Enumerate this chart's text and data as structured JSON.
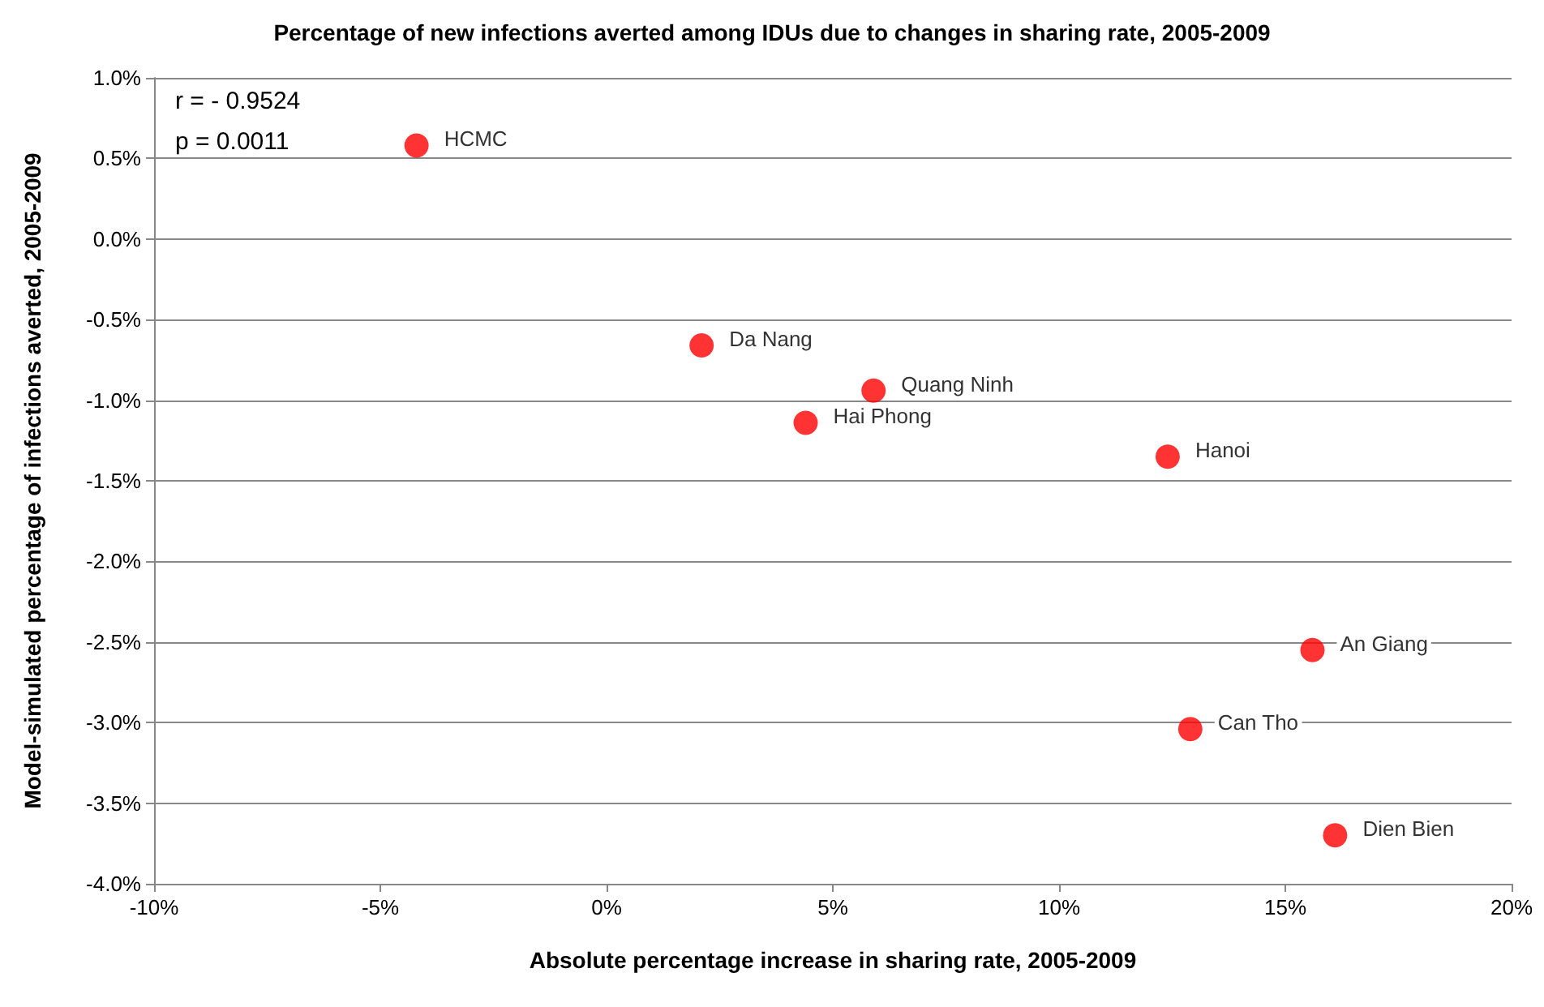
{
  "chart_data": {
    "type": "scatter",
    "title": "Percentage of new infections averted among IDUs due to changes in sharing rate, 2005-2009",
    "xlabel": "Absolute percentage increase in sharing rate, 2005-2009",
    "ylabel": "Model-simulated percentage of infections averted, 2005-2009",
    "x": [
      -4.2,
      2.1,
      5.9,
      4.4,
      12.4,
      15.6,
      12.9,
      16.1
    ],
    "series": [
      {
        "color": "#ff0000",
        "values": [
          0.58,
          -0.66,
          -0.94,
          -1.14,
          -1.35,
          -2.55,
          -3.04,
          -3.7
        ]
      }
    ],
    "xlim": [
      -10,
      20
    ],
    "xticks": [
      {
        "value": -10,
        "label": "-10%"
      },
      {
        "value": -5,
        "label": "-5%"
      },
      {
        "value": 0,
        "label": "0%"
      },
      {
        "value": 5,
        "label": "5%"
      },
      {
        "value": 10,
        "label": "10%"
      },
      {
        "value": 15,
        "label": "15%"
      },
      {
        "value": 20,
        "label": "20%"
      }
    ],
    "ylim": [
      -4,
      1
    ],
    "yticks": [
      {
        "value": -4,
        "label": "-4.0%"
      },
      {
        "value": -3.5,
        "label": "-3.5%"
      },
      {
        "value": -3,
        "label": "-3.0%"
      },
      {
        "value": -2.5,
        "label": "-2.5%"
      },
      {
        "value": -2,
        "label": "-2.0%"
      },
      {
        "value": -1.5,
        "label": "-1.5%"
      },
      {
        "value": -1,
        "label": "-1.0%"
      },
      {
        "value": -0.5,
        "label": "-0.5%"
      },
      {
        "value": 0,
        "label": "0.0%"
      },
      {
        "value": 0.5,
        "label": "0.5%"
      },
      {
        "value": 1,
        "label": "1.0%"
      }
    ],
    "grid": "y",
    "marker": "circle",
    "annotations": [
      "r = - 0.9524",
      "p = 0.0011",
      {
        "text": "HCMC",
        "x": -4.2,
        "y": 0.58
      },
      {
        "text": "Da Nang",
        "x": 2.1,
        "y": -0.66
      },
      {
        "text": "Quang Ninh",
        "x": 5.9,
        "y": -0.94
      },
      {
        "text": "Hai Phong",
        "x": 4.4,
        "y": -1.14
      },
      {
        "text": "Hanoi",
        "x": 12.4,
        "y": -1.35
      },
      {
        "text": "An Giang",
        "x": 15.6,
        "y": -2.55
      },
      {
        "text": "Can Tho",
        "x": 12.9,
        "y": -3.04
      },
      {
        "text": "Dien Bien",
        "x": 16.1,
        "y": -3.7
      }
    ]
  }
}
